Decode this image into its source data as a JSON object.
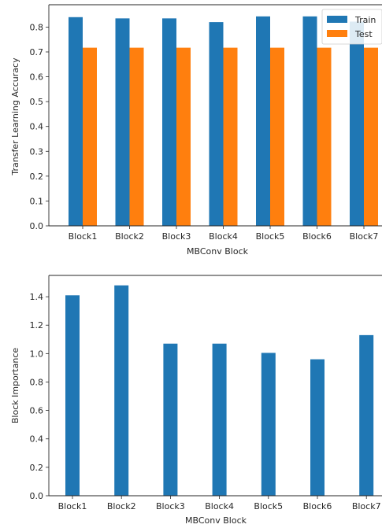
{
  "chart_data": [
    {
      "type": "bar",
      "xlabel": "MBConv Block",
      "ylabel": "Transfer Learning Accuracy",
      "categories": [
        "Block1",
        "Block2",
        "Block3",
        "Block4",
        "Block5",
        "Block6",
        "Block7"
      ],
      "series": [
        {
          "name": "Train",
          "color": "#1f77b4",
          "values": [
            0.84,
            0.835,
            0.835,
            0.82,
            0.843,
            0.843,
            0.822
          ]
        },
        {
          "name": "Test",
          "color": "#ff7f0e",
          "values": [
            0.717,
            0.717,
            0.717,
            0.717,
            0.717,
            0.717,
            0.717
          ]
        }
      ],
      "ylim": [
        0,
        0.89
      ],
      "yticks": [
        0.0,
        0.1,
        0.2,
        0.3,
        0.4,
        0.5,
        0.6,
        0.7,
        0.8
      ],
      "ytick_labels": [
        "0.0",
        "0.1",
        "0.2",
        "0.3",
        "0.4",
        "0.5",
        "0.6",
        "0.7",
        "0.8"
      ],
      "grid": false,
      "legend": "top-right"
    },
    {
      "type": "bar",
      "xlabel": "MBConv Block",
      "ylabel": "Block Importance",
      "categories": [
        "Block1",
        "Block2",
        "Block3",
        "Block4",
        "Block5",
        "Block6",
        "Block7"
      ],
      "series": [
        {
          "color": "#1f77b4",
          "values": [
            1.41,
            1.48,
            1.07,
            1.07,
            1.005,
            0.96,
            1.13
          ]
        }
      ],
      "ylim": [
        0,
        1.55
      ],
      "yticks": [
        0.0,
        0.2,
        0.4,
        0.6,
        0.8,
        1.0,
        1.2,
        1.4
      ],
      "ytick_labels": [
        "0.0",
        "0.2",
        "0.4",
        "0.6",
        "0.8",
        "1.0",
        "1.2",
        "1.4"
      ],
      "grid": false
    }
  ]
}
